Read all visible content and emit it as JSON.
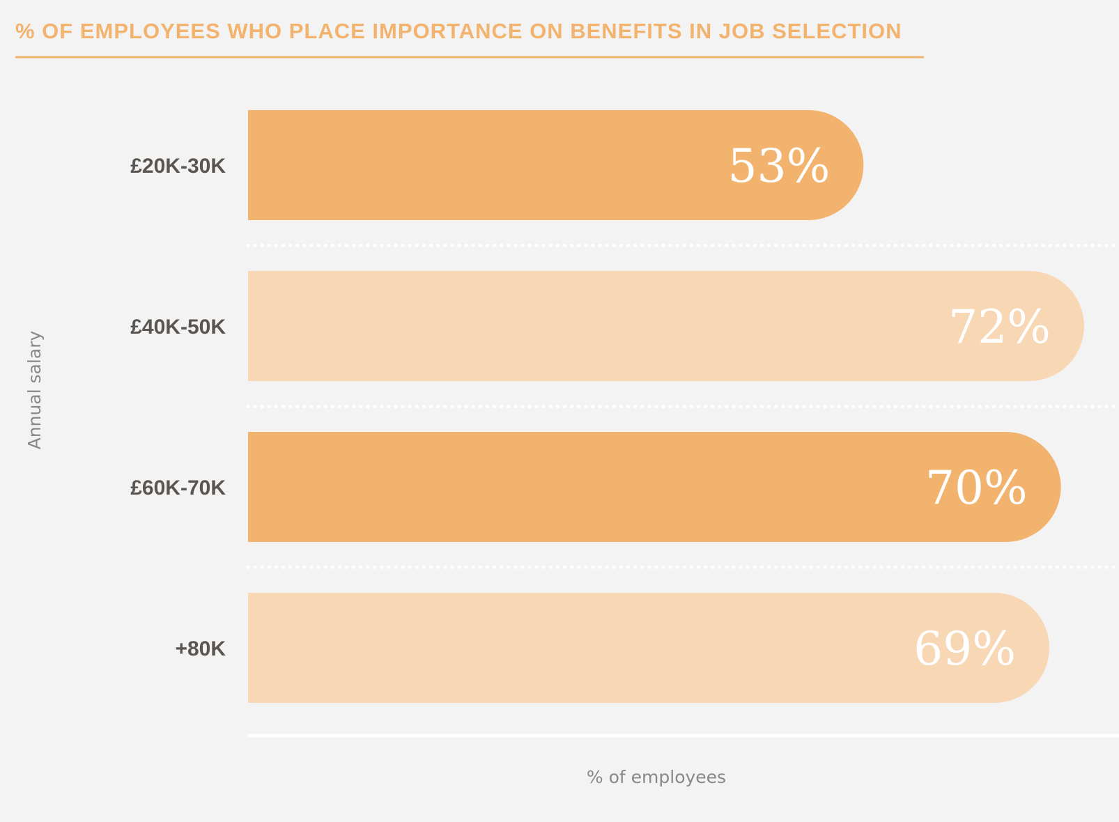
{
  "chart_data": {
    "type": "bar",
    "orientation": "horizontal",
    "title": "% OF EMPLOYEES WHO PLACE IMPORTANCE ON BENEFITS IN JOB SELECTION",
    "xlabel": "% of employees",
    "ylabel": "Annual salary",
    "categories": [
      "£20K-30K",
      "£40K-50K",
      "£60K-70K",
      "+80K"
    ],
    "values": [
      53,
      72,
      70,
      69
    ],
    "value_labels": [
      "53%",
      "72%",
      "70%",
      "69%"
    ],
    "xlim": [
      0,
      75
    ],
    "grid": false,
    "colors": {
      "accent": "#f2b36e",
      "bar_dark": "#f2b36e",
      "bar_light": "#f7d7b4",
      "label": "#5a5550",
      "axis_text": "#888888",
      "background": "#f3f3f3",
      "divider": "#ffffff"
    },
    "bar_color_pattern": [
      "dark",
      "light",
      "dark",
      "light"
    ]
  }
}
